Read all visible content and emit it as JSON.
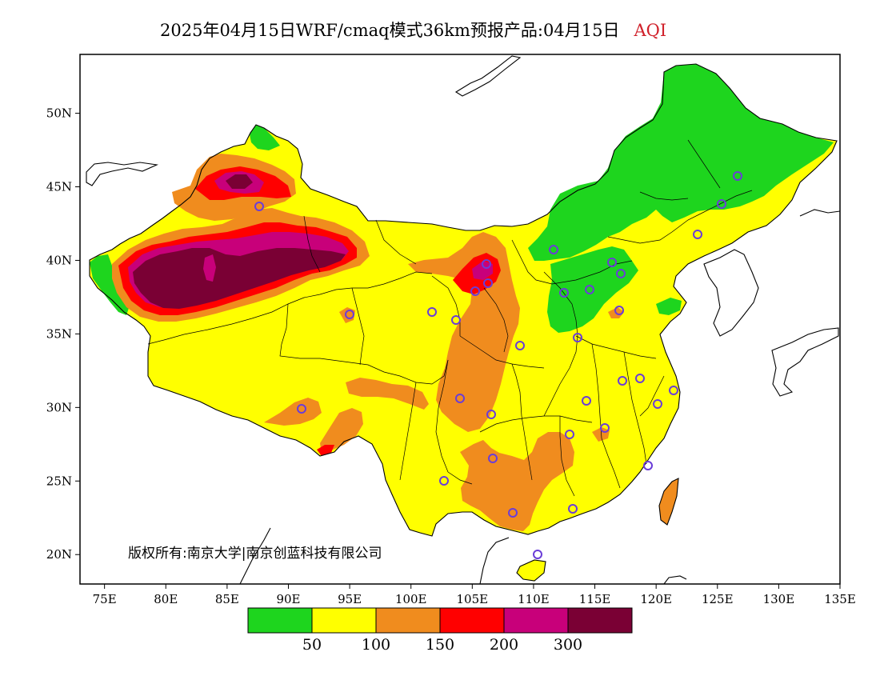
{
  "title": {
    "main": "2025年04月15日WRF/cmaq模式36km预报产品:04月15日",
    "variable": "AQI"
  },
  "colors": {
    "good": "#1ed51e",
    "moderate": "#ffff00",
    "usg": "#f08c1e",
    "unhealthy": "#ff0000",
    "very_unhealthy": "#c8007a",
    "hazardous": "#7a0034",
    "station_marker": "#6a3dd8",
    "boundary": "#000000"
  },
  "axes": {
    "y_ticks": [
      "20N",
      "25N",
      "30N",
      "35N",
      "40N",
      "45N",
      "50N"
    ],
    "x_ticks": [
      "75E",
      "80E",
      "85E",
      "90E",
      "95E",
      "100E",
      "105E",
      "110E",
      "115E",
      "120E",
      "125E",
      "130E",
      "135E"
    ],
    "lon_range": [
      73,
      135
    ],
    "lat_range": [
      18,
      54
    ]
  },
  "copyright": "版权所有:南京大学|南京创蓝科技有限公司",
  "legend": {
    "thresholds": [
      "50",
      "100",
      "150",
      "200",
      "300"
    ]
  }
}
